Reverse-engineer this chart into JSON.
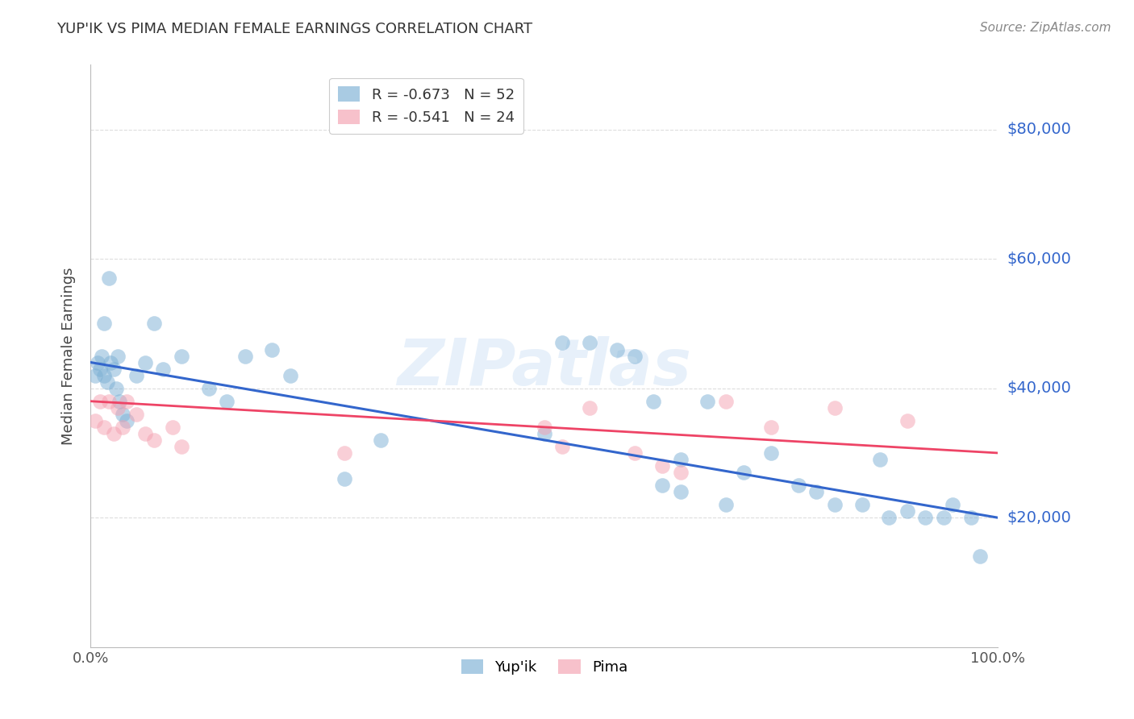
{
  "title": "YUP'IK VS PIMA MEDIAN FEMALE EARNINGS CORRELATION CHART",
  "source": "Source: ZipAtlas.com",
  "ylabel": "Median Female Earnings",
  "watermark": "ZIPatlas",
  "yup_ik_R": -0.673,
  "yup_ik_N": 52,
  "pima_R": -0.541,
  "pima_N": 24,
  "yup_ik_color": "#7BAFD4",
  "pima_color": "#F4A0B0",
  "yup_ik_line_color": "#3366CC",
  "pima_line_color": "#EE4466",
  "background_color": "#ffffff",
  "grid_color": "#dddddd",
  "right_label_color": "#3366CC",
  "title_color": "#333333",
  "ylim": [
    0,
    90000
  ],
  "xlim": [
    0.0,
    1.0
  ],
  "yup_ik_x": [
    0.005,
    0.008,
    0.01,
    0.012,
    0.015,
    0.015,
    0.018,
    0.02,
    0.022,
    0.025,
    0.028,
    0.03,
    0.032,
    0.035,
    0.04,
    0.05,
    0.06,
    0.07,
    0.08,
    0.1,
    0.13,
    0.15,
    0.17,
    0.2,
    0.22,
    0.28,
    0.32,
    0.5,
    0.52,
    0.55,
    0.58,
    0.6,
    0.62,
    0.63,
    0.65,
    0.65,
    0.68,
    0.7,
    0.72,
    0.75,
    0.78,
    0.8,
    0.82,
    0.85,
    0.87,
    0.88,
    0.9,
    0.92,
    0.94,
    0.95,
    0.97,
    0.98
  ],
  "yup_ik_y": [
    42000,
    44000,
    43000,
    45000,
    42000,
    50000,
    41000,
    57000,
    44000,
    43000,
    40000,
    45000,
    38000,
    36000,
    35000,
    42000,
    44000,
    50000,
    43000,
    45000,
    40000,
    38000,
    45000,
    46000,
    42000,
    26000,
    32000,
    33000,
    47000,
    47000,
    46000,
    45000,
    38000,
    25000,
    29000,
    24000,
    38000,
    22000,
    27000,
    30000,
    25000,
    24000,
    22000,
    22000,
    29000,
    20000,
    21000,
    20000,
    20000,
    22000,
    20000,
    14000
  ],
  "pima_x": [
    0.005,
    0.01,
    0.015,
    0.02,
    0.025,
    0.03,
    0.035,
    0.04,
    0.05,
    0.06,
    0.07,
    0.09,
    0.1,
    0.28,
    0.5,
    0.52,
    0.55,
    0.6,
    0.63,
    0.65,
    0.7,
    0.75,
    0.82,
    0.9
  ],
  "pima_y": [
    35000,
    38000,
    34000,
    38000,
    33000,
    37000,
    34000,
    38000,
    36000,
    33000,
    32000,
    34000,
    31000,
    30000,
    34000,
    31000,
    37000,
    30000,
    28000,
    27000,
    38000,
    34000,
    37000,
    35000
  ]
}
